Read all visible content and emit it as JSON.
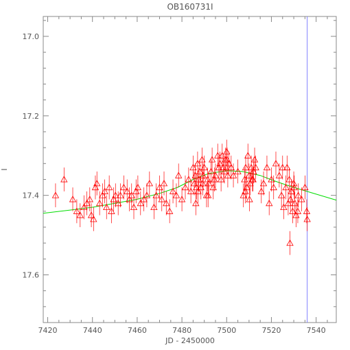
{
  "chart_data": {
    "type": "scatter",
    "title": "OB160731I",
    "xlabel": "JD - 2450000",
    "ylabel": "I",
    "xlim": [
      7418,
      7549
    ],
    "ylim": [
      17.72,
      16.95
    ],
    "y_inverted": true,
    "x_ticks": [
      7420,
      7440,
      7460,
      7480,
      7500,
      7520,
      7540
    ],
    "x_tick_labels": [
      "7420",
      "7440",
      "7460",
      "7480",
      "7500",
      "7520",
      "7540"
    ],
    "y_ticks": [
      17.0,
      17.2,
      17.4,
      17.6
    ],
    "y_tick_labels": [
      "17.0",
      "17.2",
      "17.4",
      "17.6"
    ],
    "grid": false,
    "vertical_marker_x": 7536,
    "colors": {
      "points": "#ff0000",
      "model": "#00dd00",
      "marker": "#8080ff",
      "axes": "#888888"
    },
    "series": [
      {
        "marker": "triangle",
        "x": [
          7423.5,
          7427.3,
          7431.2,
          7433.0,
          7434.5,
          7436.2,
          7437.5,
          7438.8,
          7439.5,
          7440.5,
          7441.3,
          7442.0,
          7443.2,
          7444.5,
          7445.5,
          7446.3,
          7447.5,
          7448.5,
          7449.5,
          7450.3,
          7451.5,
          7452.5,
          7454.0,
          7455.5,
          7456.5,
          7457.5,
          7458.5,
          7459.5,
          7460.3,
          7461.5,
          7463.0,
          7464.3,
          7465.5,
          7467.5,
          7468.5,
          7470.0,
          7471.0,
          7472.0,
          7473.0,
          7474.5,
          7476.0,
          7477.5,
          7478.5,
          7480.0,
          7481.5,
          7483.0,
          7484.0,
          7485.0,
          7485.5,
          7486.0,
          7486.5,
          7487.0,
          7487.5,
          7488.0,
          7488.5,
          7489.0,
          7489.5,
          7490.0,
          7491.0,
          7491.5,
          7492.0,
          7493.0,
          7493.5,
          7494.0,
          7495.0,
          7496.0,
          7496.5,
          7497.0,
          7497.5,
          7498.0,
          7499.0,
          7499.5,
          7500.0,
          7500.5,
          7501.0,
          7502.0,
          7503.0,
          7505.0,
          7507.5,
          7508.0,
          7508.5,
          7509.0,
          7509.5,
          7510.0,
          7510.5,
          7511.0,
          7511.5,
          7512.0,
          7512.5,
          7513.0,
          7515.5,
          7516.5,
          7518.0,
          7519.0,
          7520.0,
          7521.0,
          7522.0,
          7523.5,
          7524.5,
          7525.5,
          7526.5,
          7527.0,
          7528.0,
          7528.5,
          7529.0,
          7529.5,
          7530.0,
          7530.5,
          7531.0,
          7532.0,
          7533.5,
          7535.0,
          7535.8,
          7536.0,
          7486.2,
          7487.2,
          7489.3,
          7491.7,
          7494.5,
          7498.5,
          7500.2,
          7508.3,
          7510.2,
          7511.8,
          7525.0,
          7527.5,
          7530.2,
          7531.8,
          7528.3
        ],
        "y": [
          17.4,
          17.36,
          17.41,
          17.44,
          17.45,
          17.43,
          17.42,
          17.41,
          17.45,
          17.46,
          17.38,
          17.37,
          17.42,
          17.4,
          17.39,
          17.43,
          17.38,
          17.44,
          17.41,
          17.4,
          17.42,
          17.4,
          17.38,
          17.39,
          17.41,
          17.4,
          17.43,
          17.39,
          17.38,
          17.42,
          17.41,
          17.4,
          17.37,
          17.43,
          17.4,
          17.38,
          17.41,
          17.37,
          17.42,
          17.44,
          17.39,
          17.4,
          17.35,
          17.41,
          17.38,
          17.36,
          17.39,
          17.33,
          17.37,
          17.35,
          17.38,
          17.32,
          17.36,
          17.34,
          17.38,
          17.31,
          17.35,
          17.33,
          17.4,
          17.36,
          17.37,
          17.34,
          17.31,
          17.38,
          17.35,
          17.3,
          17.33,
          17.32,
          17.36,
          17.3,
          17.34,
          17.31,
          17.29,
          17.35,
          17.32,
          17.33,
          17.35,
          17.34,
          17.4,
          17.36,
          17.33,
          17.38,
          17.3,
          17.35,
          17.37,
          17.33,
          17.36,
          17.34,
          17.31,
          17.33,
          17.39,
          17.37,
          17.33,
          17.42,
          17.36,
          17.38,
          17.32,
          17.35,
          17.4,
          17.43,
          17.38,
          17.33,
          17.36,
          17.41,
          17.39,
          17.44,
          17.37,
          17.42,
          17.45,
          17.4,
          17.41,
          17.38,
          17.44,
          17.46,
          17.42,
          17.39,
          17.37,
          17.4,
          17.36,
          17.33,
          17.31,
          17.39,
          17.41,
          17.36,
          17.33,
          17.42,
          17.38,
          17.44,
          17.52
        ],
        "yerr": 0.03
      },
      {
        "type": "line",
        "x": [
          7418,
          7430,
          7440,
          7450,
          7460,
          7470,
          7478,
          7485,
          7492,
          7500,
          7507,
          7515,
          7522,
          7530,
          7540,
          7549
        ],
        "y": [
          17.445,
          17.437,
          17.43,
          17.42,
          17.41,
          17.395,
          17.38,
          17.36,
          17.345,
          17.338,
          17.34,
          17.35,
          17.365,
          17.38,
          17.397,
          17.412
        ]
      }
    ]
  }
}
